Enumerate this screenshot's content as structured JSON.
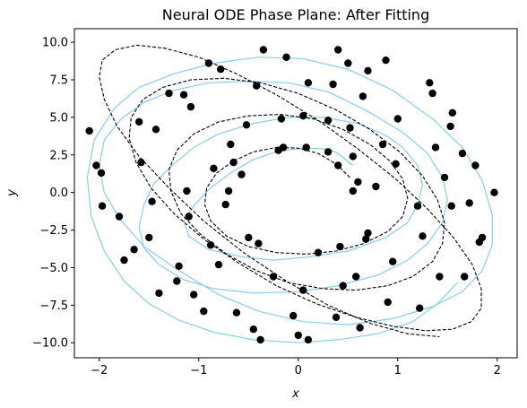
{
  "chart_data": {
    "type": "scatter",
    "title": "Neural ODE Phase Plane: After Fitting",
    "xlabel": "x",
    "ylabel": "y",
    "xlim": [
      -2.25,
      2.2
    ],
    "ylim": [
      -11.0,
      10.9
    ],
    "xticks": [
      -2,
      -1,
      0,
      1,
      2
    ],
    "xtick_labels": [
      "−2",
      "−1",
      "0",
      "1",
      "2"
    ],
    "yticks": [
      -10.0,
      -7.5,
      -5.0,
      -2.5,
      0.0,
      2.5,
      5.0,
      7.5,
      10.0
    ],
    "ytick_labels": [
      "−10.0",
      "−7.5",
      "−5.0",
      "−2.5",
      "0.0",
      "2.5",
      "5.0",
      "7.5",
      "10.0"
    ],
    "grid": false,
    "colors": {
      "fit_curve": "#87ceeb",
      "true_curve": "#000000",
      "points": "#000000"
    },
    "series": [
      {
        "kind": "line",
        "style": "solid",
        "color": "#87ceeb",
        "x": [
          0.55,
          0.4,
          0.3,
          0.05,
          -0.2,
          -0.45,
          -0.68,
          -0.9,
          -1.05,
          -1.15,
          -1.1,
          -0.9,
          -0.55,
          -0.25,
          0.1,
          0.5,
          0.88,
          1.1,
          1.2,
          1.25,
          1.2,
          1.05,
          0.88,
          0.6,
          0.25,
          -0.1,
          -0.45,
          -0.8,
          -1.05,
          -1.25,
          -1.45,
          -1.55,
          -1.6,
          -1.55,
          -1.4,
          -1.15,
          -0.85,
          -0.45,
          0.0,
          0.4,
          0.8,
          1.1,
          1.3,
          1.45,
          1.5,
          1.45,
          1.3,
          1.05,
          0.7,
          0.3,
          -0.1,
          -0.5,
          -0.9,
          -1.25,
          -1.55,
          -1.78,
          -1.95,
          -2.0,
          -1.95,
          -1.8,
          -1.55,
          -1.2,
          -0.8,
          -0.4,
          0.05,
          0.5,
          0.95,
          1.35,
          1.65,
          1.85,
          1.95,
          1.95,
          1.85,
          1.65,
          1.35,
          0.95,
          0.5,
          0.05,
          -0.4,
          -0.85,
          -1.25,
          -1.6,
          -1.85,
          -2.05,
          -2.12,
          -2.08,
          -1.95,
          -1.75,
          -1.5,
          -1.2,
          -0.85,
          -0.45,
          0.0,
          0.4,
          0.8,
          1.15,
          1.4,
          1.6
        ],
        "y": [
          1.8,
          2.6,
          2.9,
          2.95,
          2.75,
          2.2,
          1.3,
          0.2,
          -0.9,
          -1.9,
          -2.9,
          -3.8,
          -4.3,
          -4.5,
          -4.3,
          -3.9,
          -3.0,
          -2.0,
          -0.8,
          0.5,
          1.8,
          3.0,
          3.8,
          4.6,
          5.0,
          5.0,
          4.6,
          3.9,
          3.0,
          1.9,
          0.6,
          -0.8,
          -2.3,
          -3.7,
          -4.8,
          -5.8,
          -6.4,
          -6.7,
          -6.6,
          -6.2,
          -5.5,
          -4.5,
          -3.4,
          -2.0,
          -0.5,
          1.0,
          2.6,
          4.0,
          5.4,
          6.7,
          7.3,
          7.4,
          7.3,
          6.8,
          6.0,
          4.9,
          3.5,
          1.8,
          0.0,
          -1.7,
          -3.6,
          -5.2,
          -6.8,
          -7.9,
          -8.6,
          -8.8,
          -8.4,
          -7.6,
          -6.6,
          -5.2,
          -3.5,
          -1.5,
          0.8,
          3.0,
          4.9,
          6.8,
          8.2,
          8.9,
          9.0,
          8.6,
          7.9,
          7.0,
          5.6,
          3.5,
          1.0,
          -1.6,
          -3.9,
          -5.9,
          -7.4,
          -8.5,
          -9.3,
          -9.8,
          -10.0,
          -9.8,
          -9.4,
          -8.6,
          -7.4,
          -6.0
        ]
      },
      {
        "kind": "line",
        "style": "dashed",
        "color": "#000000",
        "x": [
          0.52,
          0.38,
          0.2,
          0.0,
          -0.22,
          -0.45,
          -0.65,
          -0.82,
          -0.92,
          -0.94,
          -0.88,
          -0.72,
          -0.5,
          -0.22,
          0.08,
          0.38,
          0.66,
          0.9,
          1.05,
          1.1,
          1.05,
          0.92,
          0.72,
          0.45,
          0.15,
          -0.18,
          -0.5,
          -0.8,
          -1.05,
          -1.22,
          -1.3,
          -1.28,
          -1.18,
          -0.98,
          -0.72,
          -0.42,
          -0.1,
          0.25,
          0.58,
          0.9,
          1.15,
          1.35,
          1.45,
          1.47,
          1.4,
          1.25,
          1.02,
          0.72,
          0.38,
          0.0,
          -0.38,
          -0.75,
          -1.08,
          -1.36,
          -1.56,
          -1.68,
          -1.7,
          -1.63,
          -1.48,
          -1.25,
          -0.95,
          -0.6,
          -0.22,
          0.18,
          0.58,
          0.95,
          1.28,
          1.55,
          1.74,
          1.84,
          1.84,
          1.75,
          1.56,
          1.3,
          0.98,
          0.6,
          0.2,
          -0.22,
          -0.62,
          -1.0,
          -1.34,
          -1.62,
          -1.84,
          -1.97,
          -2.0,
          -1.95,
          -1.82,
          -1.6,
          -1.3,
          -0.95,
          -0.55,
          -0.12,
          0.3,
          0.72,
          1.1,
          1.42
        ],
        "y": [
          1.0,
          1.9,
          2.6,
          2.95,
          3.0,
          2.7,
          2.1,
          1.3,
          0.3,
          -0.8,
          -1.9,
          -2.9,
          -3.6,
          -4.0,
          -4.1,
          -3.9,
          -3.4,
          -2.6,
          -1.6,
          -0.4,
          0.9,
          2.1,
          3.2,
          4.2,
          4.9,
          5.2,
          5.1,
          4.7,
          3.9,
          2.8,
          1.5,
          0.1,
          -1.4,
          -2.8,
          -4.1,
          -5.2,
          -6.0,
          -6.4,
          -6.5,
          -6.2,
          -5.6,
          -4.6,
          -3.4,
          -2.0,
          -0.5,
          1.1,
          2.7,
          4.2,
          5.5,
          6.6,
          7.3,
          7.6,
          7.5,
          7.0,
          6.2,
          5.0,
          3.6,
          2.0,
          0.3,
          -1.4,
          -3.1,
          -4.7,
          -6.2,
          -7.4,
          -8.3,
          -8.9,
          -9.2,
          -9.1,
          -8.6,
          -7.7,
          -6.4,
          -4.8,
          -3.0,
          -1.1,
          0.9,
          2.9,
          4.8,
          6.5,
          7.9,
          9.0,
          9.6,
          9.8,
          9.5,
          8.8,
          7.7,
          6.2,
          4.4,
          2.4,
          0.3,
          -1.9,
          -4.0,
          -5.9,
          -7.5,
          -8.7,
          -9.4,
          -9.6
        ]
      },
      {
        "kind": "scatter",
        "color": "#000000",
        "x": [
          -2.1,
          -2.03,
          -1.98,
          -1.97,
          -1.8,
          -1.75,
          -1.65,
          -1.6,
          -1.58,
          -1.5,
          -1.47,
          -1.43,
          -1.4,
          -1.3,
          -1.22,
          -1.2,
          -1.15,
          -1.12,
          -1.1,
          -1.08,
          -1.05,
          -0.95,
          -0.9,
          -0.88,
          -0.85,
          -0.8,
          -0.78,
          -0.73,
          -0.7,
          -0.68,
          -0.65,
          -0.62,
          -0.57,
          -0.52,
          -0.5,
          -0.45,
          -0.42,
          -0.4,
          -0.38,
          -0.35,
          -0.25,
          -0.2,
          -0.17,
          -0.15,
          -0.12,
          -0.05,
          0.0,
          0.05,
          0.05,
          0.08,
          0.1,
          0.1,
          0.2,
          0.3,
          0.3,
          0.35,
          0.38,
          0.4,
          0.4,
          0.42,
          0.45,
          0.5,
          0.52,
          0.55,
          0.55,
          0.58,
          0.6,
          0.62,
          0.65,
          0.68,
          0.7,
          0.7,
          0.78,
          0.85,
          0.88,
          0.9,
          0.95,
          0.98,
          1.0,
          1.2,
          1.22,
          1.25,
          1.32,
          1.35,
          1.38,
          1.42,
          1.47,
          1.53,
          1.54,
          1.55,
          1.65,
          1.67,
          1.72,
          1.78,
          1.82,
          1.85,
          1.97
        ],
        "y": [
          4.1,
          1.8,
          1.3,
          -0.9,
          -1.6,
          -4.5,
          -3.8,
          4.7,
          2.0,
          -3.0,
          -0.6,
          4.2,
          -6.7,
          6.6,
          -5.9,
          -4.9,
          6.5,
          0.1,
          -1.6,
          5.7,
          -6.8,
          -7.9,
          8.6,
          -3.5,
          1.6,
          -4.8,
          8.2,
          -0.8,
          0.1,
          3.2,
          2.0,
          -8.0,
          1.2,
          4.5,
          -3.0,
          -9.1,
          7.1,
          -3.4,
          -9.8,
          9.5,
          -5.6,
          2.8,
          4.9,
          3.0,
          9.0,
          -8.2,
          -9.5,
          5.1,
          -6.5,
          3.0,
          7.3,
          -9.8,
          -4.0,
          4.8,
          2.7,
          7.2,
          -8.3,
          1.8,
          9.5,
          -3.6,
          -6.2,
          8.6,
          4.3,
          2.4,
          0.1,
          -5.6,
          0.7,
          -9.0,
          6.4,
          -3.1,
          8.1,
          -2.7,
          0.4,
          3.2,
          8.8,
          -7.3,
          -4.6,
          1.9,
          4.9,
          -0.9,
          -7.7,
          -2.9,
          7.3,
          6.6,
          3.0,
          -5.6,
          1.0,
          4.4,
          -0.9,
          5.3,
          2.6,
          -5.6,
          -0.7,
          1.8,
          -3.3,
          -3.0,
          0.0
        ]
      }
    ]
  }
}
